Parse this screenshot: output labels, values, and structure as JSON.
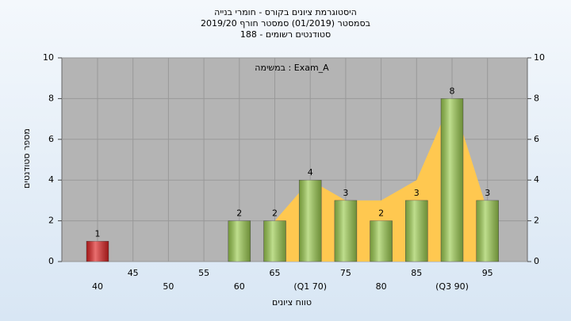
{
  "chart_data": {
    "type": "bar",
    "title": [
      "היסטוגרמת ציונים בקורס - חומרי בנייה",
      "בסמסטר  (01/2019)  סמסטר חורף 2019/20",
      "סטודנטים רשומים - 188"
    ],
    "annotation": "במשימה : Exam_A",
    "x_label": "טווח ציונים",
    "y_label": "מספר סטודנטים",
    "categories": [
      "40",
      "45",
      "50",
      "55",
      "60",
      "65",
      "(Q1 70)",
      "75",
      "80",
      "85",
      "(Q3 90)",
      "95"
    ],
    "values": [
      1,
      0,
      0,
      0,
      2,
      2,
      4,
      3,
      2,
      3,
      8,
      3
    ],
    "colors": [
      "#dd2222",
      "#9ccc50",
      "#9ccc50",
      "#9ccc50",
      "#9ccc50",
      "#9ccc50",
      "#9ccc50",
      "#9ccc50",
      "#9ccc50",
      "#9ccc50",
      "#9ccc50",
      "#9ccc50"
    ],
    "trend": {
      "color": "#ffc850",
      "values": [
        null,
        null,
        null,
        null,
        null,
        2,
        4,
        3,
        3,
        4,
        8,
        2.5
      ]
    },
    "ylim": [
      0,
      10
    ],
    "yticks": [
      0,
      2,
      4,
      6,
      8,
      10
    ],
    "y2lim": [
      0,
      10
    ],
    "y2ticks": [
      0,
      2,
      4,
      6,
      8,
      10
    ],
    "grid": true
  }
}
